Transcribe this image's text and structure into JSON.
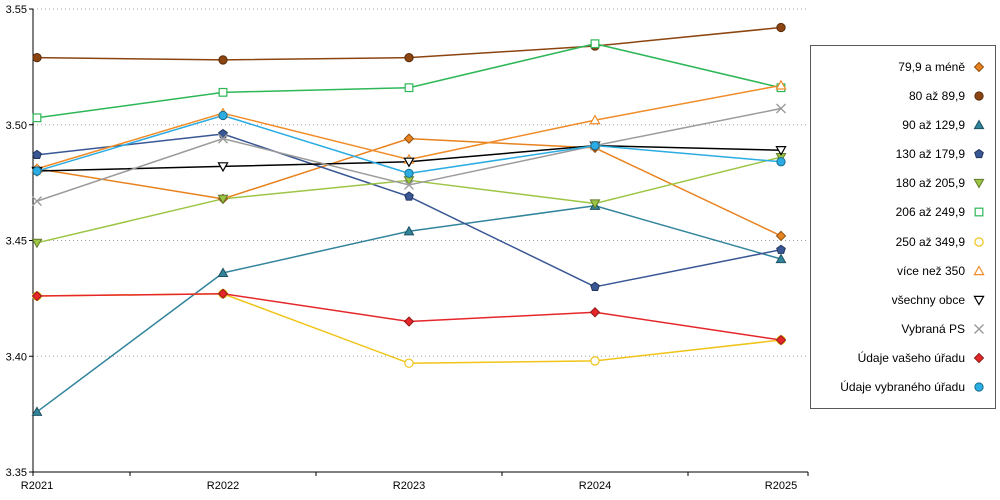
{
  "chart_data": {
    "type": "line",
    "title": "",
    "xlabel": "",
    "ylabel": "",
    "x_categories": [
      "R2021",
      "R2022",
      "R2023",
      "R2024",
      "R2025"
    ],
    "ylim": [
      3.35,
      3.55
    ],
    "y_ticks": [
      3.35,
      3.4,
      3.45,
      3.5,
      3.55
    ],
    "y_tick_labels": [
      "3.35",
      "3.40",
      "3.45",
      "3.50",
      "3.55"
    ],
    "grid": "horizontal-dotted",
    "legend_position": "right",
    "series": [
      {
        "name": "79,9 a méně",
        "color": "#E8821E",
        "marker": "diamond",
        "fill": "solid",
        "values": [
          3.481,
          3.468,
          3.494,
          3.49,
          3.452
        ]
      },
      {
        "name": "80 až 89,9",
        "color": "#8C4510",
        "marker": "circle",
        "fill": "solid",
        "values": [
          3.529,
          3.528,
          3.529,
          3.534,
          3.542
        ]
      },
      {
        "name": "90 až 129,9",
        "color": "#31849B",
        "marker": "triangle-up",
        "fill": "solid",
        "values": [
          3.376,
          3.436,
          3.454,
          3.465,
          3.442
        ]
      },
      {
        "name": "130 až 179,9",
        "color": "#3A5795",
        "marker": "pentagon",
        "fill": "solid",
        "values": [
          3.487,
          3.496,
          3.469,
          3.43,
          3.446
        ]
      },
      {
        "name": "180 až 205,9",
        "color": "#9DC544",
        "marker": "triangle-down",
        "fill": "solid",
        "values": [
          3.449,
          3.468,
          3.476,
          3.466,
          3.486
        ]
      },
      {
        "name": "206 až 249,9",
        "color": "#2DB757",
        "marker": "square",
        "fill": "open",
        "values": [
          3.503,
          3.514,
          3.516,
          3.535,
          3.516
        ]
      },
      {
        "name": "250 až 349,9",
        "color": "#F0C419",
        "marker": "circle",
        "fill": "open",
        "values": [
          3.426,
          3.427,
          3.397,
          3.398,
          3.407
        ]
      },
      {
        "name": "více než 350",
        "color": "#F08C28",
        "marker": "triangle-up",
        "fill": "open",
        "values": [
          3.481,
          3.505,
          3.485,
          3.502,
          3.517
        ]
      },
      {
        "name": "všechny obce",
        "color": "#000000",
        "marker": "triangle-down",
        "fill": "open",
        "values": [
          3.48,
          3.482,
          3.484,
          3.491,
          3.489
        ]
      },
      {
        "name": "Vybraná PS",
        "color": "#9B9B9B",
        "marker": "x",
        "fill": "open",
        "values": [
          3.467,
          3.494,
          3.474,
          3.491,
          3.507
        ]
      },
      {
        "name": "Údaje vašeho úřadu",
        "color": "#E62629",
        "marker": "diamond",
        "fill": "solid",
        "values": [
          3.426,
          3.427,
          3.415,
          3.419,
          3.407
        ]
      },
      {
        "name": "Údaje vybraného úřadu",
        "color": "#2BACE2",
        "marker": "circle",
        "fill": "solid",
        "values": [
          3.48,
          3.504,
          3.479,
          3.491,
          3.484
        ]
      }
    ]
  },
  "colors": {
    "background": "#ffffff",
    "axis": "#000000",
    "grid": "#a0a0a0",
    "legend_border": "#595959"
  }
}
